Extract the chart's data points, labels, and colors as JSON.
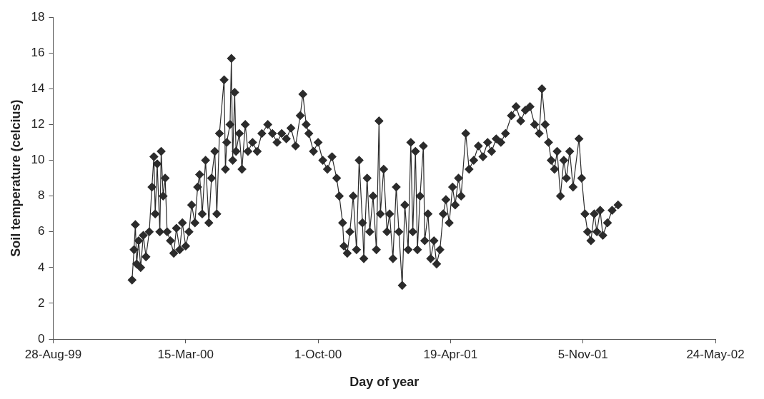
{
  "chart_data": {
    "type": "line",
    "xlabel": "Day of year",
    "ylabel": "Soil temperature (celcius)",
    "x": [
      "1999-12-25",
      "1999-12-28",
      "1999-12-30",
      "2000-01-01",
      "2000-01-04",
      "2000-01-07",
      "2000-01-11",
      "2000-01-15",
      "2000-01-20",
      "2000-01-24",
      "2000-01-27",
      "2000-01-29",
      "2000-02-01",
      "2000-02-05",
      "2000-02-07",
      "2000-02-10",
      "2000-02-13",
      "2000-02-16",
      "2000-02-21",
      "2000-02-26",
      "2000-03-01",
      "2000-03-06",
      "2000-03-10",
      "2000-03-15",
      "2000-03-20",
      "2000-03-24",
      "2000-03-29",
      "2000-04-02",
      "2000-04-05",
      "2000-04-09",
      "2000-04-14",
      "2000-04-19",
      "2000-04-23",
      "2000-04-28",
      "2000-05-01",
      "2000-05-05",
      "2000-05-12",
      "2000-05-14",
      "2000-05-16",
      "2000-05-21",
      "2000-05-23",
      "2000-05-25",
      "2000-05-28",
      "2000-05-30",
      "2000-06-04",
      "2000-06-08",
      "2000-06-13",
      "2000-06-17",
      "2000-06-24",
      "2000-07-01",
      "2000-07-08",
      "2000-07-17",
      "2000-07-24",
      "2000-07-31",
      "2000-08-07",
      "2000-08-14",
      "2000-08-21",
      "2000-08-28",
      "2000-09-04",
      "2000-09-08",
      "2000-09-13",
      "2000-09-17",
      "2000-09-24",
      "2000-10-01",
      "2000-10-08",
      "2000-10-15",
      "2000-10-22",
      "2000-10-29",
      "2000-11-02",
      "2000-11-07",
      "2000-11-09",
      "2000-11-14",
      "2000-11-18",
      "2000-11-23",
      "2000-11-28",
      "2000-12-02",
      "2000-12-07",
      "2000-12-09",
      "2000-12-14",
      "2000-12-18",
      "2000-12-23",
      "2000-12-28",
      "2001-01-01",
      "2001-01-03",
      "2001-01-08",
      "2001-01-13",
      "2001-01-17",
      "2001-01-22",
      "2001-01-27",
      "2001-01-31",
      "2001-02-05",
      "2001-02-09",
      "2001-02-14",
      "2001-02-18",
      "2001-02-21",
      "2001-02-25",
      "2001-02-28",
      "2001-03-04",
      "2001-03-09",
      "2001-03-11",
      "2001-03-16",
      "2001-03-20",
      "2001-03-25",
      "2001-03-29",
      "2001-04-03",
      "2001-04-08",
      "2001-04-12",
      "2001-04-17",
      "2001-04-22",
      "2001-04-26",
      "2001-05-01",
      "2001-05-05",
      "2001-05-12",
      "2001-05-17",
      "2001-05-24",
      "2001-05-31",
      "2001-06-07",
      "2001-06-14",
      "2001-06-20",
      "2001-06-27",
      "2001-07-04",
      "2001-07-11",
      "2001-07-20",
      "2001-07-27",
      "2001-08-03",
      "2001-08-10",
      "2001-08-17",
      "2001-08-24",
      "2001-08-31",
      "2001-09-04",
      "2001-09-09",
      "2001-09-14",
      "2001-09-18",
      "2001-09-23",
      "2001-09-27",
      "2001-10-02",
      "2001-10-07",
      "2001-10-11",
      "2001-10-16",
      "2001-10-21",
      "2001-10-30",
      "2001-11-03",
      "2001-11-08",
      "2001-11-12",
      "2001-11-17",
      "2001-11-22",
      "2001-11-26",
      "2001-12-01",
      "2001-12-05",
      "2001-12-12",
      "2001-12-19",
      "2001-12-28"
    ],
    "series": [
      {
        "color": "#2b2b2b",
        "values": [
          3.3,
          5.0,
          6.4,
          4.2,
          5.5,
          4.0,
          5.8,
          4.6,
          6.0,
          8.5,
          10.2,
          7.0,
          9.8,
          6.0,
          10.5,
          8.0,
          9.0,
          6.0,
          5.5,
          4.8,
          6.2,
          5.0,
          6.5,
          5.2,
          6.0,
          7.5,
          6.5,
          8.5,
          9.2,
          7.0,
          10.0,
          6.5,
          9.0,
          10.5,
          7.0,
          11.5,
          14.5,
          9.5,
          11.0,
          12.0,
          15.7,
          10.0,
          13.8,
          10.5,
          11.5,
          9.5,
          12.0,
          10.5,
          11.0,
          10.5,
          11.5,
          12.0,
          11.5,
          11.0,
          11.5,
          11.2,
          11.8,
          10.8,
          12.5,
          13.7,
          12.0,
          11.5,
          10.5,
          11.0,
          10.0,
          9.5,
          10.2,
          9.0,
          8.0,
          6.5,
          5.2,
          4.8,
          6.0,
          8.0,
          5.0,
          10.0,
          6.5,
          4.5,
          9.0,
          6.0,
          8.0,
          5.0,
          12.2,
          7.0,
          9.5,
          6.0,
          7.0,
          4.5,
          8.5,
          6.0,
          3.0,
          7.5,
          5.0,
          11.0,
          6.0,
          10.5,
          5.0,
          8.0,
          10.8,
          5.5,
          7.0,
          4.5,
          5.5,
          4.2,
          5.0,
          7.0,
          7.8,
          6.5,
          8.5,
          7.5,
          9.0,
          8.0,
          11.5,
          9.5,
          10.0,
          10.8,
          10.2,
          11.0,
          10.5,
          11.2,
          11.0,
          11.5,
          12.5,
          13.0,
          12.2,
          12.8,
          13.0,
          12.0,
          11.5,
          14.0,
          12.0,
          11.0,
          10.0,
          9.5,
          10.5,
          8.0,
          10.0,
          9.0,
          10.5,
          8.5,
          11.2,
          9.0,
          7.0,
          6.0,
          5.5,
          7.0,
          6.0,
          7.2,
          5.8,
          6.5,
          7.2,
          7.5
        ]
      }
    ],
    "xlim": [
      "1999-08-28",
      "2002-05-24"
    ],
    "xticks": [
      {
        "value": "1999-08-28",
        "label": "28-Aug-99"
      },
      {
        "value": "2000-03-15",
        "label": "15-Mar-00"
      },
      {
        "value": "2000-10-01",
        "label": "1-Oct-00"
      },
      {
        "value": "2001-04-19",
        "label": "19-Apr-01"
      },
      {
        "value": "2001-11-05",
        "label": "5-Nov-01"
      },
      {
        "value": "2002-05-24",
        "label": "24-May-02"
      }
    ],
    "ylim": [
      0,
      18
    ],
    "yticks": [
      0,
      2,
      4,
      6,
      8,
      10,
      12,
      14,
      16,
      18
    ],
    "grid": false,
    "marker": "diamond",
    "line_style": "solid"
  }
}
